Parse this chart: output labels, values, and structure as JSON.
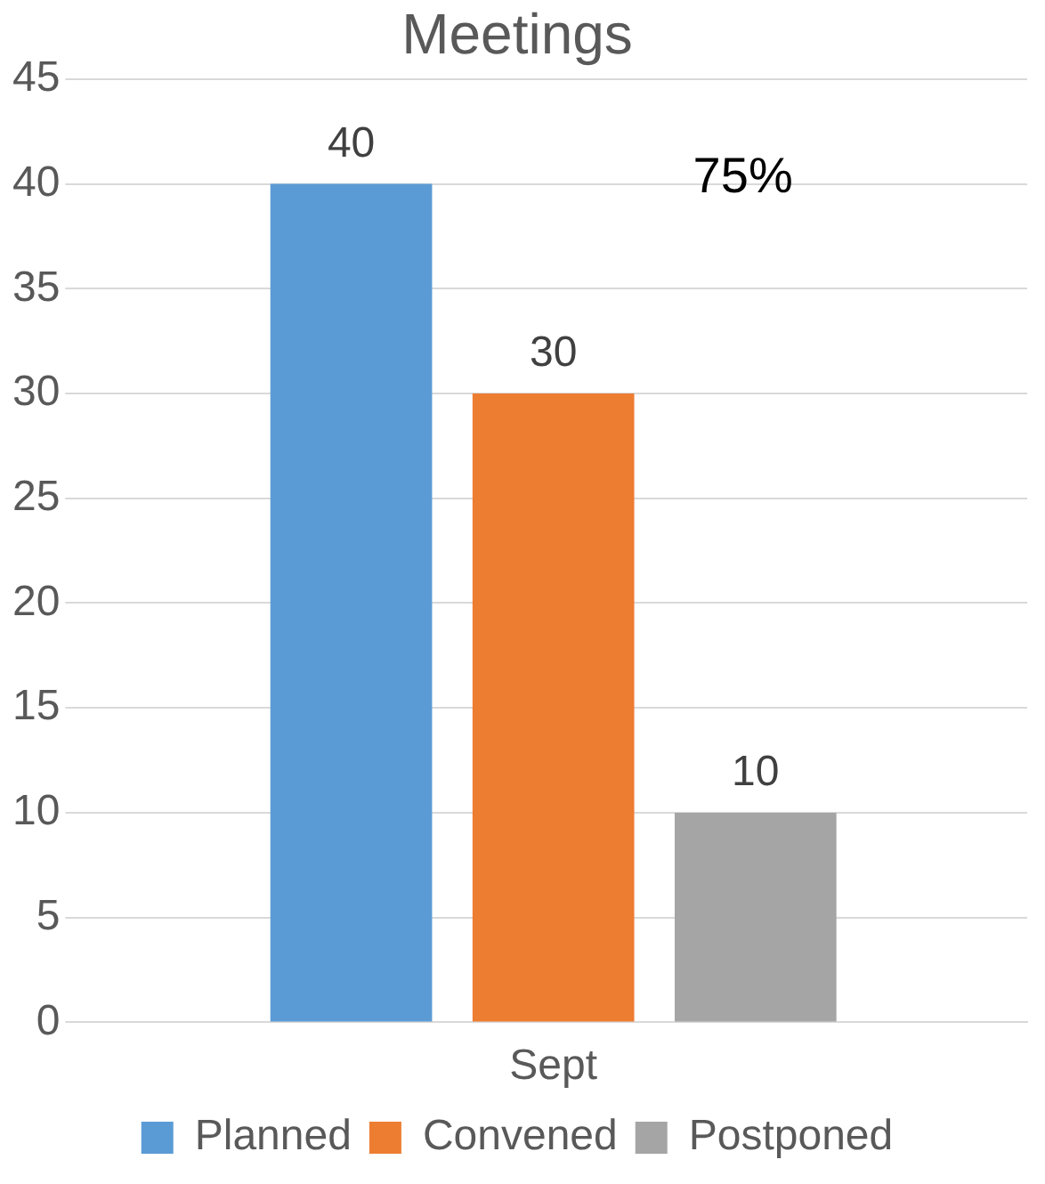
{
  "chart_data": {
    "type": "bar",
    "title": "Meetings",
    "categories": [
      "Sept"
    ],
    "series": [
      {
        "name": "Planned",
        "color": "#5b9bd5",
        "values": [
          40
        ]
      },
      {
        "name": "Convened",
        "color": "#ed7d31",
        "values": [
          30
        ]
      },
      {
        "name": "Postponed",
        "color": "#a5a5a5",
        "values": [
          10
        ]
      }
    ],
    "ylim": [
      0,
      45
    ],
    "yticks": [
      0,
      5,
      10,
      15,
      20,
      25,
      30,
      35,
      40,
      45
    ],
    "grid": "y",
    "legend": "bottom",
    "data_labels": true,
    "annotations": [
      "75%"
    ]
  }
}
